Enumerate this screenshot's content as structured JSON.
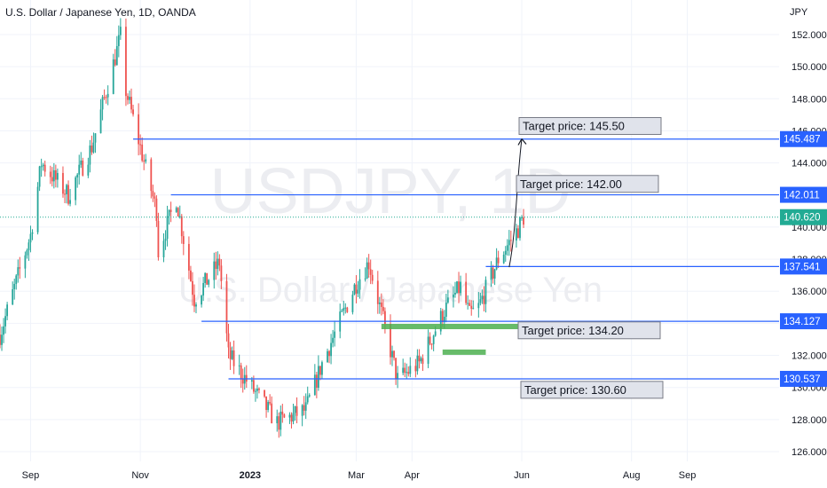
{
  "header": {
    "title": "U.S. Dollar / Japanese Yen, 1D, OANDA"
  },
  "axis_unit": "JPY",
  "watermark": {
    "symbol": "USDJPY, 1D",
    "name": "U.S. Dollar / Japanese Yen"
  },
  "colors": {
    "up": "#26a69a",
    "down": "#ef5350",
    "level": "#2962ff",
    "zone": "#4caf50",
    "last": "#22ab94",
    "grid": "#f0f3fa"
  },
  "chart_data": {
    "type": "candlestick",
    "title": "U.S. Dollar / Japanese Yen, 1D, OANDA",
    "ylabel": "JPY",
    "ylim": [
      125.5,
      152.8
    ],
    "grid": true,
    "y_ticks": [
      "126.000",
      "128.000",
      "130.000",
      "132.000",
      "134.000",
      "136.000",
      "138.000",
      "140.000",
      "142.000",
      "144.000",
      "146.000",
      "148.000",
      "150.000",
      "152.000"
    ],
    "x_ticks": [
      "Sep",
      "Nov",
      "2023",
      "Mar",
      "Apr",
      "Jun",
      "Aug",
      "Sep"
    ],
    "price_path": [
      {
        "date": "2022-08-15",
        "value": 133.3
      },
      {
        "date": "2022-09-01",
        "value": 139.5
      },
      {
        "date": "2022-09-07",
        "value": 144.0
      },
      {
        "date": "2022-09-22",
        "value": 142.0
      },
      {
        "date": "2022-10-05",
        "value": 145.0
      },
      {
        "date": "2022-10-21",
        "value": 151.9
      },
      {
        "date": "2022-10-24",
        "value": 148.5
      },
      {
        "date": "2022-11-10",
        "value": 141.0
      },
      {
        "date": "2022-11-11",
        "value": 138.5
      },
      {
        "date": "2022-11-21",
        "value": 141.8
      },
      {
        "date": "2022-12-01",
        "value": 135.5
      },
      {
        "date": "2022-12-15",
        "value": 137.8
      },
      {
        "date": "2022-12-20",
        "value": 132.0
      },
      {
        "date": "2023-01-16",
        "value": 127.8
      },
      {
        "date": "2023-02-01",
        "value": 128.6
      },
      {
        "date": "2023-02-10",
        "value": 131.5
      },
      {
        "date": "2023-03-01",
        "value": 136.5
      },
      {
        "date": "2023-03-08",
        "value": 137.8
      },
      {
        "date": "2023-03-24",
        "value": 130.5
      },
      {
        "date": "2023-04-05",
        "value": 131.5
      },
      {
        "date": "2023-04-19",
        "value": 134.8
      },
      {
        "date": "2023-04-28",
        "value": 136.3
      },
      {
        "date": "2023-05-03",
        "value": 134.5
      },
      {
        "date": "2023-05-08",
        "value": 135.0
      },
      {
        "date": "2023-05-19",
        "value": 138.0
      },
      {
        "date": "2023-05-30",
        "value": 139.9
      },
      {
        "date": "2023-06-02",
        "value": 140.62
      }
    ],
    "levels": [
      {
        "label": "145.487",
        "value": 145.487,
        "start": "2022-10-28"
      },
      {
        "label": "142.011",
        "value": 142.011,
        "start": "2022-11-18"
      },
      {
        "label": "137.541",
        "value": 137.541,
        "start": "2023-05-12"
      },
      {
        "label": "134.127",
        "value": 134.127,
        "start": "2022-12-05"
      },
      {
        "label": "130.537",
        "value": 130.537,
        "start": "2022-12-20"
      }
    ],
    "last_price": {
      "label": "140.620",
      "value": 140.62
    },
    "targets": [
      {
        "text": "Target price: 145.50",
        "value": 145.5
      },
      {
        "text": "Target price: 142.00",
        "value": 142.0
      },
      {
        "text": "Target price: 134.20",
        "value": 134.2
      },
      {
        "text": "Target price: 130.60",
        "value": 130.6
      }
    ],
    "zones": [
      {
        "start": "2023-03-15",
        "end": "2023-05-30",
        "value": 133.8
      },
      {
        "start": "2023-04-18",
        "end": "2023-05-12",
        "value": 132.2
      }
    ],
    "projection": {
      "from_date": "2023-05-25",
      "from_value": 137.5,
      "to_date": "2023-06-01",
      "to_value": 145.5
    }
  }
}
